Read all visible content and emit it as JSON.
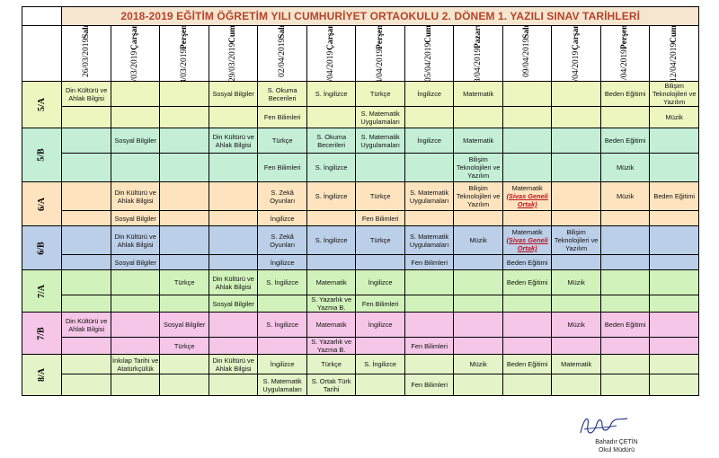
{
  "title": "2018-2019 EĞİTİM ÖĞRETİM YILI CUMHURİYET ORTAOKULU 2. DÖNEM 1. YAZILI SINAV TARİHLERİ",
  "days": [
    {
      "date": "26/03/2019",
      "day": "Salı"
    },
    {
      "date": "27/03/2019",
      "day": "Çarşamba"
    },
    {
      "date": "28/03/2019",
      "day": "Perşembe"
    },
    {
      "date": "29/03/2019",
      "day": "Cuma"
    },
    {
      "date": "02/04/2019",
      "day": "Salı"
    },
    {
      "date": "03/04/2019",
      "day": "Çarşamba"
    },
    {
      "date": "04/04/2019",
      "day": "Perşembe"
    },
    {
      "date": "05/04/2019",
      "day": "Cuma"
    },
    {
      "date": "08/04/2019",
      "day": "Pazartesi"
    },
    {
      "date": "09/04/2019",
      "day": "Salı"
    },
    {
      "date": "10/04/2019",
      "day": "Çarşamba"
    },
    {
      "date": "11/04/2019",
      "day": "Perşembe"
    },
    {
      "date": "12/04/2019",
      "day": "Cuma"
    }
  ],
  "classes": [
    {
      "name": "5/A",
      "color": "#eef6c0",
      "rows": [
        [
          "Din Kültürü ve Ahlak Bilgisi",
          "",
          "",
          "Sosyal Bilgiler",
          "S. Okuma Becerileri",
          "S. İngilizce",
          "Türkçe",
          "İngilizce",
          "Matematik",
          "",
          "",
          "Beden Eğitimi",
          "Bilişim Teknolojileri ve Yazılım"
        ],
        [
          "",
          "",
          "",
          "",
          "Fen Bilimleri",
          "",
          "S. Matematik Uygulamaları",
          "",
          "",
          "",
          "",
          "",
          "Müzik"
        ]
      ]
    },
    {
      "name": "5/B",
      "color": "#c4efd6",
      "rows": [
        [
          "",
          "Sosyal Bilgiler",
          "",
          "Din Kültürü ve Ahlak Bilgisi",
          "Türkçe",
          "S. Okuma Becerileri",
          "S. Matematik Uygulamaları",
          "İngilizce",
          "Matematik",
          "",
          "",
          "Beden Eğitimi",
          ""
        ],
        [
          "",
          "",
          "",
          "",
          "Fen Bilimleri",
          "S. İngilizce",
          "",
          "",
          "Bilişim Teknolojileri ve Yazılım",
          "",
          "",
          "Müzik",
          ""
        ]
      ]
    },
    {
      "name": "6/A",
      "color": "#fde4bf",
      "rows": [
        [
          "",
          "Din Kültürü ve Ahlak Bilgisi",
          "",
          "",
          "S. Zekâ Oyunları",
          "S. İngilizce",
          "Türkçe",
          "S. Matematik Uygulamaları",
          "Bilişim Teknolojileri ve Yazılım",
          "Matematik (Sivas Geneli Ortak)",
          "",
          "Müzik",
          "Beden Eğitimi"
        ],
        [
          "",
          "Sosyal Bilgiler",
          "",
          "",
          "İngilizce",
          "",
          "Fen Bilimleri",
          "",
          "",
          "",
          "",
          "",
          ""
        ]
      ]
    },
    {
      "name": "6/B",
      "color": "#bccfe8",
      "rows": [
        [
          "",
          "Din Kültürü ve Ahlak Bilgisi",
          "",
          "",
          "S. Zekâ Oyunları",
          "S. İngilizce",
          "Türkçe",
          "S. Matematik Uygulamaları",
          "Müzik",
          "Matematik (Sivas Geneli Ortak)",
          "Bilişim Teknolojileri ve Yazılım",
          "",
          ""
        ],
        [
          "",
          "Sosyal Bilgiler",
          "",
          "",
          "İngilizce",
          "",
          "",
          "Fen Bilimleri",
          "",
          "Beden Eğitimi",
          "",
          "",
          ""
        ]
      ]
    },
    {
      "name": "7/A",
      "color": "#d2f2bb",
      "rows": [
        [
          "",
          "",
          "Türkçe",
          "Din Kültürü ve Ahlak Bilgisi",
          "S. İngilizce",
          "Matematik",
          "İngilizce",
          "",
          "",
          "Beden Eğitimi",
          "Müzik",
          "",
          ""
        ],
        [
          "",
          "",
          "",
          "Sosyal Bilgiler",
          "",
          "S. Yazarlık ve Yazma B.",
          "Fen Bilimleri",
          "",
          "",
          "",
          "",
          "",
          ""
        ]
      ]
    },
    {
      "name": "7/B",
      "color": "#f5c6e8",
      "rows": [
        [
          "Din Kültürü ve Ahlak Bilgisi",
          "",
          "Sosyal Bilgiler",
          "",
          "S. İngilizce",
          "Matematik",
          "İngilizce",
          "",
          "",
          "",
          "Müzik",
          "Beden Eğitimi",
          ""
        ],
        [
          "",
          "",
          "Türkçe",
          "",
          "",
          "S. Yazarlık ve Yazma B.",
          "",
          "Fen Bilimleri",
          "",
          "",
          "",
          "",
          ""
        ]
      ]
    },
    {
      "name": "8/A",
      "color": "#e4f4c8",
      "rows": [
        [
          "",
          "İnkılap Tarihi ve Atatürkçülük",
          "",
          "Din Kültürü ve Ahlak Bilgisi",
          "İngilizce",
          "Türkçe",
          "S. İngilizce",
          "",
          "Müzik",
          "Beden Eğitimi",
          "Matematik",
          "",
          ""
        ],
        [
          "",
          "",
          "",
          "",
          "S. Matematik Uygulamaları",
          "S. Ortak Türk Tarihi",
          "",
          "Fen Bilimleri",
          "",
          "",
          "",
          "",
          ""
        ]
      ]
    }
  ],
  "signature": {
    "name": "Bahadır ÇETİN",
    "title": "Okul Müdürü"
  }
}
